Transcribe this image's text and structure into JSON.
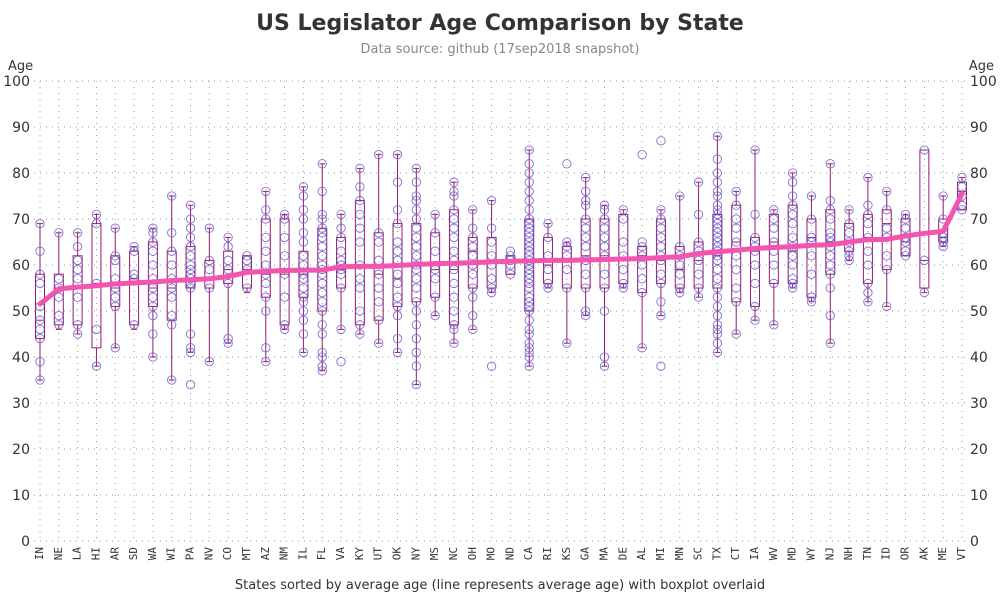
{
  "chart_data": {
    "type": "scatter",
    "title": "US Legislator Age Comparison by State",
    "subtitle": "Data source: github (17sep2018 snapshot)",
    "ylabel_left": "Age",
    "ylabel_right": "Age",
    "xlabel": "States sorted by average age (line represents average age) with boxplot overlaid",
    "ylim": [
      0,
      100
    ],
    "yticks": [
      0,
      10,
      20,
      30,
      40,
      50,
      60,
      70,
      80,
      90,
      100
    ],
    "grid": true,
    "categories": [
      "IN",
      "NE",
      "LA",
      "HI",
      "AR",
      "SD",
      "WA",
      "WI",
      "PA",
      "NV",
      "CO",
      "MT",
      "AZ",
      "NM",
      "IL",
      "FL",
      "VA",
      "KY",
      "UT",
      "OK",
      "NY",
      "MS",
      "NC",
      "OH",
      "MO",
      "ND",
      "CA",
      "RI",
      "KS",
      "GA",
      "MA",
      "DE",
      "AL",
      "MI",
      "MN",
      "SC",
      "TX",
      "CT",
      "IA",
      "WV",
      "MD",
      "WY",
      "NJ",
      "NH",
      "TN",
      "ID",
      "OR",
      "AK",
      "ME",
      "VT"
    ],
    "average_series": {
      "name": "average age",
      "values": [
        51.5,
        54.8,
        55.2,
        55.5,
        55.9,
        56.1,
        56.3,
        56.6,
        56.8,
        57.0,
        57.5,
        58.4,
        58.6,
        58.8,
        58.9,
        58.9,
        59.6,
        59.7,
        59.7,
        59.9,
        60.1,
        60.3,
        60.4,
        60.5,
        60.7,
        60.8,
        60.9,
        61.0,
        61.0,
        61.1,
        61.2,
        61.3,
        61.4,
        61.6,
        61.8,
        62.5,
        62.9,
        63.2,
        63.6,
        63.8,
        64.0,
        64.3,
        64.4,
        65.0,
        65.5,
        65.6,
        66.3,
        66.9,
        67.3,
        75.5
      ]
    },
    "boxplots": [
      {
        "min": 35,
        "q1": 44,
        "median": 48,
        "q3": 58,
        "max": 69
      },
      {
        "min": 46,
        "q1": 47,
        "median": 55,
        "q3": 58,
        "max": 67
      },
      {
        "min": 45,
        "q1": 47,
        "median": 55,
        "q3": 62,
        "max": 67
      },
      {
        "min": 38,
        "q1": 42,
        "median": 56,
        "q3": 69,
        "max": 71
      },
      {
        "min": 42,
        "q1": 51,
        "median": 55,
        "q3": 62,
        "max": 68
      },
      {
        "min": 46,
        "q1": 47,
        "median": 57,
        "q3": 63,
        "max": 64
      },
      {
        "min": 40,
        "q1": 51,
        "median": 55,
        "q3": 65,
        "max": 68
      },
      {
        "min": 35,
        "q1": 48,
        "median": 55,
        "q3": 63,
        "max": 75
      },
      {
        "min": 41,
        "q1": 55,
        "median": 57,
        "q3": 64,
        "max": 73
      },
      {
        "min": 39,
        "q1": 55,
        "median": 57,
        "q3": 61,
        "max": 68
      },
      {
        "min": 43,
        "q1": 56,
        "median": 59,
        "q3": 63,
        "max": 66
      },
      {
        "min": 54,
        "q1": 55,
        "median": 59,
        "q3": 62,
        "max": 62
      },
      {
        "min": 39,
        "q1": 53,
        "median": 58,
        "q3": 70,
        "max": 76
      },
      {
        "min": 46,
        "q1": 47,
        "median": 58,
        "q3": 70,
        "max": 71
      },
      {
        "min": 41,
        "q1": 53,
        "median": 58,
        "q3": 63,
        "max": 77
      },
      {
        "min": 37,
        "q1": 50,
        "median": 59,
        "q3": 68,
        "max": 82
      },
      {
        "min": 46,
        "q1": 55,
        "median": 59,
        "q3": 66,
        "max": 71
      },
      {
        "min": 45,
        "q1": 47,
        "median": 60,
        "q3": 74,
        "max": 81
      },
      {
        "min": 43,
        "q1": 48,
        "median": 58,
        "q3": 67,
        "max": 84
      },
      {
        "min": 41,
        "q1": 51,
        "median": 57,
        "q3": 69,
        "max": 84
      },
      {
        "min": 34,
        "q1": 52,
        "median": 60,
        "q3": 69,
        "max": 81
      },
      {
        "min": 49,
        "q1": 53,
        "median": 59,
        "q3": 67,
        "max": 71
      },
      {
        "min": 43,
        "q1": 47,
        "median": 59,
        "q3": 72,
        "max": 78
      },
      {
        "min": 46,
        "q1": 55,
        "median": 63,
        "q3": 66,
        "max": 72
      },
      {
        "min": 54,
        "q1": 55,
        "median": 61,
        "q3": 66,
        "max": 74
      },
      {
        "min": 58,
        "q1": 58,
        "median": 61,
        "q3": 62,
        "max": 62
      },
      {
        "min": 38,
        "q1": 50,
        "median": 61,
        "q3": 70,
        "max": 85
      },
      {
        "min": 55,
        "q1": 56,
        "median": 60,
        "q3": 66,
        "max": 69
      },
      {
        "min": 43,
        "q1": 55,
        "median": 61,
        "q3": 64,
        "max": 65
      },
      {
        "min": 49,
        "q1": 55,
        "median": 62,
        "q3": 70,
        "max": 79
      },
      {
        "min": 38,
        "q1": 55,
        "median": 62,
        "q3": 70,
        "max": 73
      },
      {
        "min": 55,
        "q1": 56,
        "median": 61,
        "q3": 71,
        "max": 72
      },
      {
        "min": 42,
        "q1": 54,
        "median": 62,
        "q3": 64,
        "max": 64
      },
      {
        "min": 49,
        "q1": 56,
        "median": 61,
        "q3": 70,
        "max": 72
      },
      {
        "min": 54,
        "q1": 55,
        "median": 59,
        "q3": 64,
        "max": 75
      },
      {
        "min": 53,
        "q1": 55,
        "median": 61,
        "q3": 65,
        "max": 78
      },
      {
        "min": 41,
        "q1": 55,
        "median": 62,
        "q3": 71,
        "max": 88
      },
      {
        "min": 45,
        "q1": 52,
        "median": 65,
        "q3": 73,
        "max": 76
      },
      {
        "min": 48,
        "q1": 51,
        "median": 63,
        "q3": 66,
        "max": 85
      },
      {
        "min": 47,
        "q1": 56,
        "median": 65,
        "q3": 71,
        "max": 72
      },
      {
        "min": 55,
        "q1": 56,
        "median": 63,
        "q3": 73,
        "max": 80
      },
      {
        "min": 52,
        "q1": 53,
        "median": 66,
        "q3": 70,
        "max": 75
      },
      {
        "min": 43,
        "q1": 58,
        "median": 65,
        "q3": 72,
        "max": 82
      },
      {
        "min": 61,
        "q1": 63,
        "median": 65,
        "q3": 69,
        "max": 72
      },
      {
        "min": 52,
        "q1": 56,
        "median": 66,
        "q3": 71,
        "max": 79
      },
      {
        "min": 51,
        "q1": 59,
        "median": 69,
        "q3": 72,
        "max": 76
      },
      {
        "min": 62,
        "q1": 62,
        "median": 65,
        "q3": 70,
        "max": 71
      },
      {
        "min": 54,
        "q1": 55,
        "median": 61,
        "q3": 85,
        "max": 85
      },
      {
        "min": 64,
        "q1": 65,
        "median": 66,
        "q3": 70,
        "max": 75
      },
      {
        "min": 72,
        "q1": 72,
        "median": 76,
        "q3": 78,
        "max": 79
      }
    ],
    "points": [
      [
        35,
        39,
        44,
        46,
        48,
        51,
        56,
        58,
        63,
        69
      ],
      [
        47,
        49,
        53,
        55,
        57,
        67
      ],
      [
        45,
        47,
        53,
        57,
        59,
        61,
        64,
        67
      ],
      [
        38,
        46,
        56,
        69,
        71
      ],
      [
        42,
        51,
        53,
        55,
        57,
        61,
        62,
        68
      ],
      [
        47,
        57,
        58,
        63,
        64
      ],
      [
        40,
        45,
        49,
        51,
        53,
        55,
        57,
        60,
        63,
        65,
        67,
        68
      ],
      [
        35,
        47,
        49,
        53,
        55,
        57,
        60,
        63,
        67,
        75
      ],
      [
        34,
        41,
        42,
        45,
        55,
        56,
        57,
        58,
        59,
        60,
        62,
        64,
        66,
        68,
        70,
        73
      ],
      [
        39,
        55,
        59,
        61,
        68
      ],
      [
        43,
        44,
        56,
        59,
        61,
        64,
        66
      ],
      [
        55,
        59,
        61,
        62
      ],
      [
        39,
        42,
        50,
        53,
        56,
        58,
        60,
        63,
        66,
        70,
        72,
        76
      ],
      [
        46,
        47,
        53,
        58,
        62,
        66,
        70,
        71
      ],
      [
        41,
        45,
        48,
        50,
        52,
        53,
        55,
        57,
        58,
        60,
        62,
        65,
        67,
        70,
        72,
        75,
        77
      ],
      [
        37,
        38,
        40,
        41,
        45,
        47,
        50,
        52,
        54,
        56,
        58,
        59,
        60,
        62,
        64,
        66,
        67,
        68,
        70,
        71,
        76,
        82
      ],
      [
        39,
        46,
        55,
        58,
        59,
        60,
        61,
        63,
        66,
        68,
        71
      ],
      [
        45,
        47,
        50,
        55,
        57,
        60,
        65,
        68,
        71,
        74,
        77,
        81
      ],
      [
        43,
        48,
        52,
        55,
        58,
        61,
        65,
        67,
        84
      ],
      [
        41,
        44,
        49,
        51,
        53,
        56,
        58,
        61,
        63,
        65,
        69,
        72,
        78,
        84
      ],
      [
        34,
        38,
        41,
        44,
        47,
        50,
        52,
        55,
        57,
        59,
        60,
        62,
        64,
        66,
        68,
        70,
        72,
        74,
        75,
        78,
        81
      ],
      [
        49,
        53,
        57,
        59,
        63,
        67,
        71
      ],
      [
        43,
        46,
        47,
        50,
        53,
        56,
        59,
        61,
        63,
        66,
        68,
        70,
        72,
        75,
        76,
        78
      ],
      [
        46,
        49,
        53,
        55,
        58,
        60,
        62,
        64,
        66,
        68,
        72
      ],
      [
        38,
        54,
        55,
        57,
        60,
        62,
        65,
        68,
        74
      ],
      [
        58,
        60,
        61,
        62,
        63
      ],
      [
        38,
        40,
        41,
        42,
        43,
        45,
        46,
        48,
        50,
        51,
        52,
        53,
        55,
        56,
        57,
        58,
        59,
        60,
        61,
        62,
        63,
        64,
        65,
        66,
        67,
        68,
        69,
        70,
        72,
        74,
        76,
        78,
        80,
        82,
        85
      ],
      [
        55,
        56,
        59,
        62,
        66,
        69
      ],
      [
        43,
        55,
        59,
        62,
        64,
        65,
        82
      ],
      [
        49,
        50,
        55,
        58,
        61,
        64,
        66,
        68,
        70,
        73,
        74,
        76,
        79
      ],
      [
        38,
        40,
        50,
        55,
        58,
        62,
        64,
        66,
        68,
        70,
        72,
        73
      ],
      [
        55,
        56,
        59,
        62,
        65,
        70,
        72
      ],
      [
        42,
        54,
        57,
        60,
        62,
        64,
        65,
        84
      ],
      [
        38,
        49,
        52,
        56,
        58,
        61,
        62,
        64,
        66,
        68,
        70,
        72,
        87
      ],
      [
        54,
        55,
        58,
        60,
        62,
        64,
        75
      ],
      [
        53,
        55,
        58,
        61,
        63,
        65,
        71,
        78
      ],
      [
        41,
        43,
        45,
        46,
        47,
        49,
        51,
        53,
        55,
        57,
        59,
        61,
        62,
        63,
        64,
        65,
        66,
        67,
        68,
        69,
        70,
        71,
        72,
        73,
        75,
        76,
        78,
        80,
        83,
        88
      ],
      [
        45,
        52,
        55,
        59,
        62,
        65,
        68,
        70,
        73,
        76
      ],
      [
        48,
        51,
        56,
        60,
        63,
        64,
        66,
        71,
        85
      ],
      [
        47,
        56,
        60,
        63,
        65,
        68,
        70,
        72
      ],
      [
        55,
        56,
        57,
        60,
        62,
        64,
        66,
        69,
        71,
        73,
        75,
        78,
        80
      ],
      [
        52,
        53,
        58,
        62,
        65,
        66,
        70,
        75
      ],
      [
        43,
        49,
        55,
        58,
        60,
        62,
        64,
        65,
        66,
        67,
        70,
        72,
        74,
        82
      ],
      [
        61,
        62,
        63,
        65,
        67,
        69,
        72
      ],
      [
        52,
        54,
        56,
        60,
        63,
        66,
        69,
        71,
        73,
        79
      ],
      [
        51,
        59,
        62,
        66,
        68,
        72,
        76
      ],
      [
        62,
        63,
        65,
        66,
        68,
        70,
        71
      ],
      [
        54,
        61,
        85
      ],
      [
        64,
        65,
        66,
        67,
        70,
        75
      ],
      [
        72,
        73,
        75,
        77,
        79
      ]
    ],
    "colors": {
      "points": "#6a5acd",
      "box": "#9b1b6e",
      "average_line": "#f254b0",
      "grid": "#9a9a9a",
      "text": "#333333"
    }
  }
}
